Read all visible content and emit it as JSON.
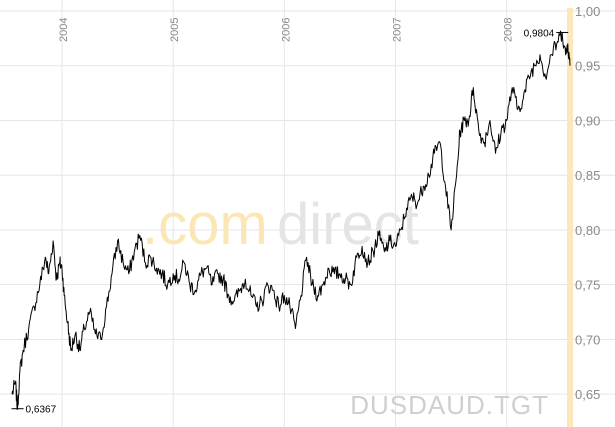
{
  "watermark": {
    "part1": ".com",
    "part2": "direct",
    "ticker": "DUSDAUD.TGT"
  },
  "chart_data": {
    "type": "line",
    "title": "",
    "xlabel": "",
    "ylabel": "",
    "x_tick_labels": [
      "2004",
      "2005",
      "2006",
      "2007",
      "2008"
    ],
    "x_range": [
      2003.55,
      2008.57
    ],
    "y_ticks": [
      "0,65",
      "0,70",
      "0,75",
      "0,80",
      "0,85",
      "0,90",
      "0,95",
      "1,00"
    ],
    "ylim": [
      0.62,
      1.0
    ],
    "grid": true,
    "annotations": [
      {
        "label": "0,9804",
        "x": 2008.5,
        "y": 0.9804
      },
      {
        "label": "0,6367",
        "x": 2003.6,
        "y": 0.6367
      }
    ],
    "series": [
      {
        "x": [
          2003.55,
          2003.58,
          2003.6,
          2003.62,
          2003.65,
          2003.7,
          2003.75,
          2003.8,
          2003.85,
          2003.88,
          2003.92,
          2003.95,
          2003.98,
          2004.0,
          2004.02,
          2004.05,
          2004.08,
          2004.12,
          2004.16,
          2004.2,
          2004.25,
          2004.3,
          2004.35,
          2004.4,
          2004.45,
          2004.5,
          2004.55,
          2004.6,
          2004.65,
          2004.7,
          2004.75,
          2004.8,
          2004.85,
          2004.9,
          2004.95,
          2005.0,
          2005.05,
          2005.1,
          2005.15,
          2005.2,
          2005.25,
          2005.3,
          2005.35,
          2005.4,
          2005.45,
          2005.5,
          2005.55,
          2005.6,
          2005.65,
          2005.7,
          2005.75,
          2005.8,
          2005.85,
          2005.9,
          2005.95,
          2006.0,
          2006.05,
          2006.1,
          2006.15,
          2006.2,
          2006.25,
          2006.3,
          2006.35,
          2006.4,
          2006.45,
          2006.5,
          2006.55,
          2006.6,
          2006.65,
          2006.7,
          2006.75,
          2006.8,
          2006.85,
          2006.9,
          2006.95,
          2007.0,
          2007.05,
          2007.1,
          2007.15,
          2007.2,
          2007.25,
          2007.3,
          2007.35,
          2007.4,
          2007.45,
          2007.5,
          2007.55,
          2007.58,
          2007.62,
          2007.66,
          2007.7,
          2007.75,
          2007.8,
          2007.85,
          2007.9,
          2007.95,
          2008.0,
          2008.05,
          2008.1,
          2008.15,
          2008.2,
          2008.25,
          2008.3,
          2008.35,
          2008.4,
          2008.45,
          2008.5,
          2008.53,
          2008.55,
          2008.57
        ],
        "y": [
          0.65,
          0.66,
          0.637,
          0.67,
          0.69,
          0.71,
          0.73,
          0.75,
          0.775,
          0.76,
          0.79,
          0.755,
          0.77,
          0.765,
          0.74,
          0.715,
          0.69,
          0.705,
          0.69,
          0.71,
          0.725,
          0.705,
          0.7,
          0.73,
          0.76,
          0.79,
          0.77,
          0.76,
          0.78,
          0.795,
          0.77,
          0.775,
          0.765,
          0.76,
          0.75,
          0.76,
          0.755,
          0.77,
          0.75,
          0.745,
          0.76,
          0.765,
          0.75,
          0.76,
          0.755,
          0.74,
          0.735,
          0.745,
          0.755,
          0.74,
          0.73,
          0.735,
          0.75,
          0.745,
          0.73,
          0.74,
          0.73,
          0.71,
          0.74,
          0.775,
          0.75,
          0.74,
          0.75,
          0.765,
          0.76,
          0.76,
          0.755,
          0.75,
          0.775,
          0.785,
          0.77,
          0.78,
          0.795,
          0.78,
          0.79,
          0.785,
          0.8,
          0.82,
          0.83,
          0.825,
          0.84,
          0.85,
          0.87,
          0.88,
          0.84,
          0.8,
          0.85,
          0.89,
          0.9,
          0.9,
          0.93,
          0.89,
          0.88,
          0.9,
          0.87,
          0.89,
          0.9,
          0.93,
          0.91,
          0.92,
          0.94,
          0.95,
          0.96,
          0.94,
          0.96,
          0.97,
          0.9804,
          0.96,
          0.97,
          0.95
        ]
      }
    ]
  }
}
